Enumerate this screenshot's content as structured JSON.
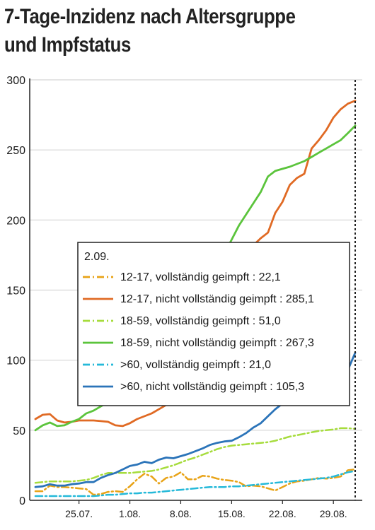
{
  "chart_data": {
    "type": "line",
    "title": "7-Tage-Inzidenz nach Altersgruppe und Impfstatus",
    "xlabel": "",
    "ylabel": "",
    "ylim": [
      0,
      300
    ],
    "yticks": [
      0,
      50,
      100,
      150,
      200,
      250,
      300
    ],
    "x_day_range": [
      "19.07.",
      "2.09."
    ],
    "xtick_labels": [
      "25.07.",
      "1.08.",
      "8.08.",
      "15.08.",
      "22.08.",
      "29.08."
    ],
    "grid": true,
    "marker_label": "2.09.",
    "legend": {
      "position": "center-right",
      "title": "2.09."
    },
    "series": [
      {
        "name": "12-17, vollständig geimpft",
        "value_label": "22,1",
        "color": "#e8a317",
        "dash": "dash-dot",
        "values": [
          6.5,
          6.5,
          10.5,
          9.5,
          9.5,
          9.0,
          8.5,
          8.0,
          4.0,
          4.5,
          6.0,
          6.5,
          6.0,
          10.0,
          15.0,
          19.0,
          17.0,
          12.0,
          16.0,
          17.0,
          20.0,
          15.0,
          15.0,
          17.5,
          17.0,
          15.5,
          14.5,
          14.0,
          13.0,
          10.0,
          10.5,
          10.0,
          8.5,
          7.0,
          9.5,
          12.0,
          13.5,
          14.0,
          15.0,
          16.0,
          15.5,
          16.0,
          17.0,
          21.5,
          22.1
        ]
      },
      {
        "name": "12-17, nicht vollständig geimpft",
        "value_label": "285,1",
        "color": "#e06a24",
        "dash": "solid",
        "values": [
          58,
          61,
          61.5,
          57,
          55.5,
          56,
          57,
          57,
          57,
          56.5,
          56,
          53.5,
          53,
          55,
          58,
          60,
          62,
          65,
          68,
          73,
          79,
          86,
          95,
          105,
          115,
          128,
          140,
          152,
          163,
          172,
          182,
          187,
          191,
          205,
          213,
          225,
          230,
          233,
          251,
          257,
          264,
          273,
          279,
          283,
          285.1
        ]
      },
      {
        "name": "18-59, vollständig geimpft",
        "value_label": "51,0",
        "color": "#a6dc3c",
        "dash": "dash-dot",
        "values": [
          12.5,
          13,
          13.5,
          13.5,
          13.5,
          13.5,
          14,
          14.5,
          16,
          18,
          19.5,
          19.5,
          19.5,
          19.5,
          20,
          20.5,
          21,
          22,
          23.5,
          25,
          27,
          29,
          30.5,
          32.5,
          34.5,
          36.5,
          38,
          39,
          39.5,
          40,
          40.5,
          41,
          41.5,
          42.5,
          44,
          45.5,
          46.5,
          47.5,
          48.5,
          49.5,
          50,
          50.5,
          51.5,
          51.5,
          51.0
        ]
      },
      {
        "name": "18-59, nicht vollständig geimpft",
        "value_label": "267,3",
        "color": "#5bc43c",
        "dash": "solid",
        "values": [
          50,
          53.5,
          55.5,
          53,
          53.5,
          56,
          58,
          62,
          64,
          67,
          70,
          74,
          79,
          84,
          90,
          96,
          103,
          110,
          118,
          126,
          134,
          141,
          147,
          154,
          160,
          168,
          176,
          186,
          196,
          204,
          212,
          220,
          231,
          235,
          236.5,
          238,
          240,
          242,
          245,
          248,
          251,
          254,
          257,
          262,
          267.3
        ]
      },
      {
        "name": ">60, vollständig geimpft",
        "value_label": "21,0",
        "color": "#25b9d9",
        "dash": "dash-dot",
        "values": [
          3,
          3,
          3,
          3,
          3,
          3,
          3,
          3,
          3,
          3.5,
          4,
          4,
          4.5,
          5,
          5,
          5.5,
          5.5,
          6,
          6.5,
          7,
          7.5,
          8,
          8.5,
          9,
          9.5,
          9.5,
          9.5,
          10,
          10,
          10.5,
          11,
          11.5,
          12,
          12.5,
          13,
          13.5,
          14,
          14.5,
          15,
          15.5,
          16,
          17,
          18.5,
          20,
          21.0
        ]
      },
      {
        "name": ">60, nicht vollständig geimpft",
        "value_label": "105,3",
        "color": "#2b74b9",
        "dash": "solid",
        "values": [
          9.5,
          10,
          11.5,
          10.5,
          10.5,
          11.5,
          12,
          13,
          13,
          16,
          18,
          19.5,
          22,
          24.5,
          25.5,
          27.5,
          26.5,
          29,
          30.5,
          30,
          31.5,
          33,
          35,
          37,
          39.5,
          41,
          42,
          42.5,
          45,
          48,
          52,
          55,
          60,
          65,
          69,
          71,
          74,
          77,
          80,
          82,
          84,
          86,
          90,
          93,
          105.3
        ]
      }
    ]
  }
}
